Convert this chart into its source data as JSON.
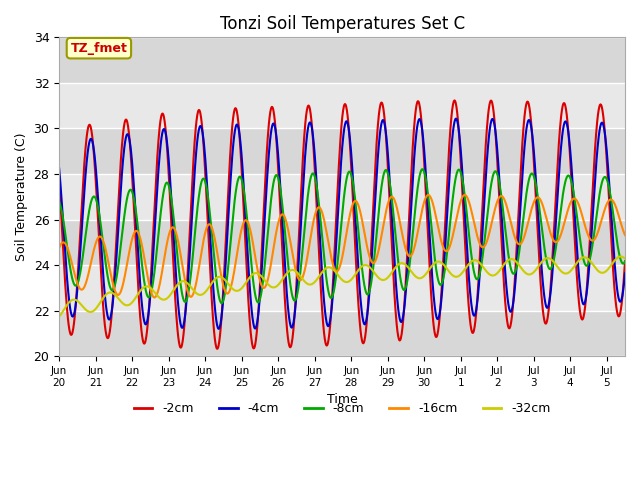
{
  "title": "Tonzi Soil Temperatures Set C",
  "xlabel": "Time",
  "ylabel": "Soil Temperature (C)",
  "ylim": [
    20,
    34
  ],
  "annotation": "TZ_fmet",
  "legend": [
    "-2cm",
    "-4cm",
    "-8cm",
    "-16cm",
    "-32cm"
  ],
  "colors": [
    "#dd0000",
    "#0000cc",
    "#00aa00",
    "#ff8800",
    "#cccc00"
  ],
  "line_widths": [
    1.5,
    1.5,
    1.5,
    1.5,
    1.5
  ],
  "background_color": "#ffffff",
  "plot_bg_color": "#e8e8e8",
  "grid_color": "#ffffff",
  "xtick_labels": [
    "Jun\n20",
    "Jun\n21",
    "Jun\n22",
    "Jun\n23",
    "Jun\n24",
    "Jun\n25",
    "Jun\n26",
    "Jun\n27",
    "Jun\n28",
    "Jun\n29",
    "Jun\n30",
    "Jul\n1",
    "Jul\n2",
    "Jul\n3",
    "Jul\n4",
    "Jul\n5"
  ],
  "xtick_positions": [
    0,
    1,
    2,
    3,
    4,
    5,
    6,
    7,
    8,
    9,
    10,
    11,
    12,
    13,
    14,
    15
  ],
  "n_days": 15.5,
  "points_per_day": 96
}
